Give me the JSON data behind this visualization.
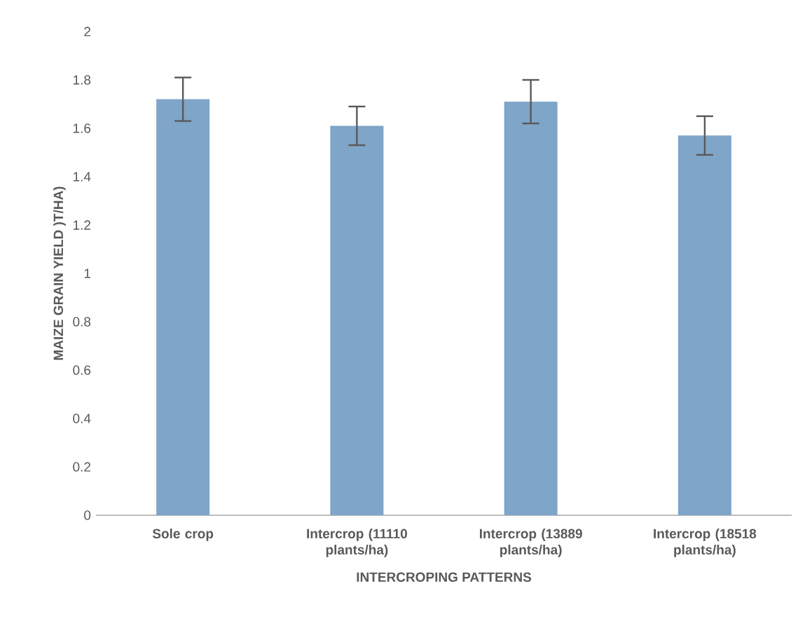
{
  "chart_data": {
    "type": "bar",
    "xlabel": "INTERCROPING PATTERNS",
    "ylabel": "MAIZE GRAIN YIELD )T/HA)",
    "categories": [
      "Sole crop",
      "Intercrop (11110 plants/ha)",
      "Intercrop (13889 plants/ha)",
      "Intercrop (18518 plants/ha)"
    ],
    "values": [
      1.72,
      1.61,
      1.71,
      1.57
    ],
    "errors": [
      0.09,
      0.08,
      0.09,
      0.08
    ],
    "color": "#7fa5c8",
    "ylim": [
      0,
      2
    ],
    "yticks": [
      0,
      0.2,
      0.4,
      0.6,
      0.8,
      1,
      1.2,
      1.4,
      1.6,
      1.8,
      2
    ]
  }
}
